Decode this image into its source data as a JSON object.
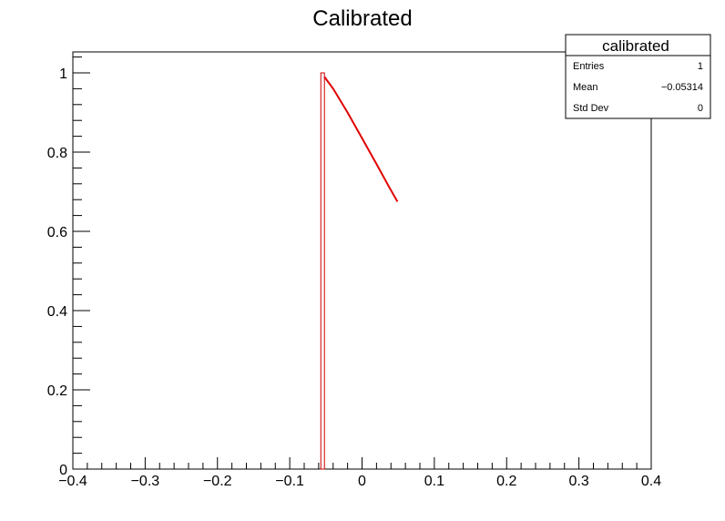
{
  "chart_data": {
    "type": "histogram",
    "title": "Calibrated",
    "xlabel": "",
    "ylabel": "",
    "xlim": [
      -0.4,
      0.4
    ],
    "ylim": [
      0,
      1.05
    ],
    "grid": false,
    "x_ticks": [
      {
        "value": -0.4,
        "label": "−0.4"
      },
      {
        "value": -0.3,
        "label": "−0.3"
      },
      {
        "value": -0.2,
        "label": "−0.2"
      },
      {
        "value": -0.1,
        "label": "−0.1"
      },
      {
        "value": 0,
        "label": "0"
      },
      {
        "value": 0.1,
        "label": "0.1"
      },
      {
        "value": 0.2,
        "label": "0.2"
      },
      {
        "value": 0.3,
        "label": "0.3"
      },
      {
        "value": 0.4,
        "label": "0.4"
      }
    ],
    "y_ticks": [
      {
        "value": 0,
        "label": "0"
      },
      {
        "value": 0.2,
        "label": "0.2"
      },
      {
        "value": 0.4,
        "label": "0.4"
      },
      {
        "value": 0.6,
        "label": "0.6"
      },
      {
        "value": 0.8,
        "label": "0.8"
      },
      {
        "value": 1,
        "label": "1"
      }
    ],
    "bins": [
      {
        "x_low": -0.057,
        "x_high": -0.052,
        "value": 1
      }
    ],
    "curve": {
      "color": "#e00000",
      "points": [
        [
          -0.052,
          0.99
        ],
        [
          -0.04,
          0.96
        ],
        [
          -0.02,
          0.9
        ],
        [
          0,
          0.835
        ],
        [
          0.02,
          0.77
        ],
        [
          0.038,
          0.71
        ],
        [
          0.049,
          0.675
        ]
      ]
    },
    "bar_color": "#cc0000",
    "stats_box": {
      "title": "calibrated",
      "position": "top-right",
      "rows": [
        {
          "label": "Entries",
          "value": "1"
        },
        {
          "label": "Mean",
          "value": "−0.05314"
        },
        {
          "label": "Std Dev",
          "value": "0"
        }
      ]
    }
  }
}
